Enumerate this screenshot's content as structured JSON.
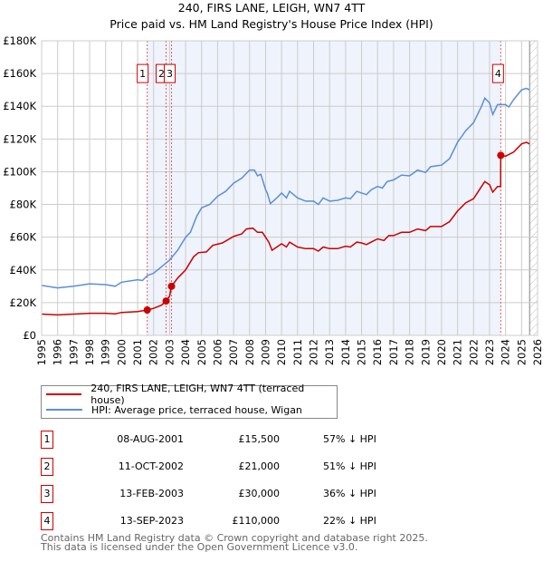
{
  "title": "240, FIRS LANE, LEIGH, WN7 4TT",
  "subtitle": "Price paid vs. HM Land Registry's House Price Index (HPI)",
  "chart_data": {
    "type": "line",
    "xlim": [
      1995,
      2026
    ],
    "ylim": [
      0,
      180000
    ],
    "x_ticks": [
      "1995",
      "1996",
      "1997",
      "1998",
      "1999",
      "2000",
      "2001",
      "2002",
      "2003",
      "2004",
      "2005",
      "2006",
      "2007",
      "2008",
      "2009",
      "2010",
      "2011",
      "2012",
      "2013",
      "2014",
      "2015",
      "2016",
      "2017",
      "2018",
      "2019",
      "2020",
      "2021",
      "2022",
      "2023",
      "2024",
      "2025",
      "2026"
    ],
    "y_ticks": [
      {
        "value": 0,
        "label": "£0"
      },
      {
        "value": 20000,
        "label": "£20K"
      },
      {
        "value": 40000,
        "label": "£40K"
      },
      {
        "value": 60000,
        "label": "£60K"
      },
      {
        "value": 80000,
        "label": "£80K"
      },
      {
        "value": 100000,
        "label": "£100K"
      },
      {
        "value": 120000,
        "label": "£120K"
      },
      {
        "value": 140000,
        "label": "£140K"
      },
      {
        "value": 160000,
        "label": "£160K"
      },
      {
        "value": 180000,
        "label": "£180K"
      }
    ],
    "grid": true,
    "shaded_range": [
      2001.6,
      2023.7
    ],
    "hatched_from": 2025.5,
    "series": [
      {
        "name": "240, FIRS LANE, LEIGH, WN7 4TT (terraced house)",
        "color": "#cc0000",
        "points": [
          [
            1995,
            13000
          ],
          [
            1996,
            12500
          ],
          [
            1997,
            13000
          ],
          [
            1998,
            13500
          ],
          [
            1999,
            13500
          ],
          [
            1999.6,
            13200
          ],
          [
            2000,
            14000
          ],
          [
            2001,
            14500
          ],
          [
            2001.6,
            15500
          ],
          [
            2002,
            16500
          ],
          [
            2002.5,
            18500
          ],
          [
            2002.78,
            21000
          ],
          [
            2003,
            24000
          ],
          [
            2003.12,
            30000
          ],
          [
            2003.5,
            35000
          ],
          [
            2004,
            40000
          ],
          [
            2004.5,
            48000
          ],
          [
            2004.8,
            50500
          ],
          [
            2005.3,
            51000
          ],
          [
            2005.7,
            55000
          ],
          [
            2006.3,
            56500
          ],
          [
            2007,
            60500
          ],
          [
            2007.5,
            62000
          ],
          [
            2007.8,
            65000
          ],
          [
            2008.2,
            65500
          ],
          [
            2008.5,
            63000
          ],
          [
            2008.8,
            63000
          ],
          [
            2009.2,
            57000
          ],
          [
            2009.4,
            52000
          ],
          [
            2010,
            56000
          ],
          [
            2010.3,
            54000
          ],
          [
            2010.5,
            57000
          ],
          [
            2011,
            54000
          ],
          [
            2011.5,
            53000
          ],
          [
            2012,
            53000
          ],
          [
            2012.3,
            51500
          ],
          [
            2012.6,
            54000
          ],
          [
            2013,
            53000
          ],
          [
            2013.5,
            53000
          ],
          [
            2014,
            54500
          ],
          [
            2014.3,
            54000
          ],
          [
            2014.7,
            57000
          ],
          [
            2015,
            56500
          ],
          [
            2015.3,
            55500
          ],
          [
            2015.7,
            57500
          ],
          [
            2016,
            59000
          ],
          [
            2016.4,
            58000
          ],
          [
            2016.7,
            61000
          ],
          [
            2017,
            61000
          ],
          [
            2017.5,
            63000
          ],
          [
            2018,
            63000
          ],
          [
            2018.5,
            65000
          ],
          [
            2019,
            64000
          ],
          [
            2019.3,
            66500
          ],
          [
            2020,
            66500
          ],
          [
            2020.5,
            69500
          ],
          [
            2021,
            76000
          ],
          [
            2021.5,
            81000
          ],
          [
            2022,
            83500
          ],
          [
            2022.5,
            91000
          ],
          [
            2022.7,
            94000
          ],
          [
            2023,
            92000
          ],
          [
            2023.2,
            87500
          ],
          [
            2023.5,
            91000
          ],
          [
            2023.69,
            91000
          ],
          [
            2023.7,
            110000
          ],
          [
            2024,
            109500
          ],
          [
            2024.5,
            112000
          ],
          [
            2025,
            117000
          ],
          [
            2025.3,
            118000
          ],
          [
            2025.5,
            117000
          ]
        ]
      },
      {
        "name": "HPI: Average price, terraced house, Wigan",
        "color": "#5b8fd4",
        "points": [
          [
            1995,
            30500
          ],
          [
            1996,
            29000
          ],
          [
            1997,
            30000
          ],
          [
            1998,
            31500
          ],
          [
            1999,
            31000
          ],
          [
            1999.6,
            30000
          ],
          [
            2000,
            32500
          ],
          [
            2001,
            34000
          ],
          [
            2001.3,
            33500
          ],
          [
            2001.6,
            36500
          ],
          [
            2002,
            38000
          ],
          [
            2002.5,
            42000
          ],
          [
            2003,
            46000
          ],
          [
            2003.5,
            52000
          ],
          [
            2004,
            60000
          ],
          [
            2004.3,
            63000
          ],
          [
            2004.7,
            73000
          ],
          [
            2005,
            78000
          ],
          [
            2005.5,
            80000
          ],
          [
            2006,
            85000
          ],
          [
            2006.5,
            88000
          ],
          [
            2007,
            93000
          ],
          [
            2007.5,
            96000
          ],
          [
            2008,
            101000
          ],
          [
            2008.3,
            101000
          ],
          [
            2008.5,
            97500
          ],
          [
            2008.7,
            98500
          ],
          [
            2009,
            89000
          ],
          [
            2009.1,
            87000
          ],
          [
            2009.3,
            80500
          ],
          [
            2009.7,
            84000
          ],
          [
            2010,
            87000
          ],
          [
            2010.3,
            84000
          ],
          [
            2010.5,
            88000
          ],
          [
            2011,
            84000
          ],
          [
            2011.5,
            82000
          ],
          [
            2012,
            82000
          ],
          [
            2012.3,
            80000
          ],
          [
            2012.6,
            84000
          ],
          [
            2013,
            82000
          ],
          [
            2013.5,
            82500
          ],
          [
            2014,
            84000
          ],
          [
            2014.3,
            83500
          ],
          [
            2014.7,
            88000
          ],
          [
            2015,
            87000
          ],
          [
            2015.3,
            86000
          ],
          [
            2015.6,
            89000
          ],
          [
            2016,
            91000
          ],
          [
            2016.3,
            90000
          ],
          [
            2016.6,
            94000
          ],
          [
            2017,
            95000
          ],
          [
            2017.5,
            98000
          ],
          [
            2018,
            97500
          ],
          [
            2018.5,
            101000
          ],
          [
            2019,
            99500
          ],
          [
            2019.3,
            103000
          ],
          [
            2019.6,
            103500
          ],
          [
            2020,
            104000
          ],
          [
            2020.5,
            108000
          ],
          [
            2021,
            118000
          ],
          [
            2021.5,
            125000
          ],
          [
            2022,
            130000
          ],
          [
            2022.5,
            140000
          ],
          [
            2022.7,
            145000
          ],
          [
            2023,
            142000
          ],
          [
            2023.2,
            135000
          ],
          [
            2023.5,
            141000
          ],
          [
            2024,
            141000
          ],
          [
            2024.2,
            139500
          ],
          [
            2024.5,
            144000
          ],
          [
            2025,
            150000
          ],
          [
            2025.3,
            151000
          ],
          [
            2025.5,
            150000
          ]
        ]
      }
    ],
    "sales": [
      {
        "num": "1",
        "x": 2001.6,
        "price_value": 15500,
        "date": "08-AUG-2001",
        "price": "£15,500",
        "hpi": "57% ↓ HPI"
      },
      {
        "num": "2",
        "x": 2002.78,
        "price_value": 21000,
        "date": "11-OCT-2002",
        "price": "£21,000",
        "hpi": "51% ↓ HPI"
      },
      {
        "num": "3",
        "x": 2003.12,
        "price_value": 30000,
        "date": "13-FEB-2003",
        "price": "£30,000",
        "hpi": "36% ↓ HPI"
      },
      {
        "num": "4",
        "x": 2023.7,
        "price_value": 110000,
        "date": "13-SEP-2023",
        "price": "£110,000",
        "hpi": "22% ↓ HPI"
      }
    ]
  },
  "legend": {
    "items": [
      {
        "label": "240, FIRS LANE, LEIGH, WN7 4TT (terraced house)",
        "color": "#cc0000"
      },
      {
        "label": "HPI: Average price, terraced house, Wigan",
        "color": "#5b8fd4"
      }
    ]
  },
  "footer": {
    "line1": "Contains HM Land Registry data © Crown copyright and database right 2025.",
    "line2": "This data is licensed under the Open Government Licence v3.0."
  }
}
